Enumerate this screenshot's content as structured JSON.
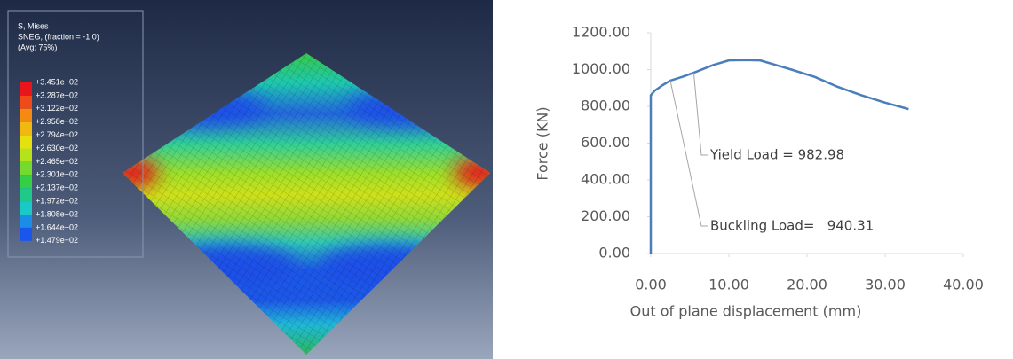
{
  "contour_legend": {
    "lines": [
      "S, Mises",
      "SNEG, (fraction = -1.0)",
      "(Avg: 75%)"
    ],
    "levels": [
      {
        "value": 345.1,
        "label": "+3.451e+02"
      },
      {
        "value": 328.7,
        "label": "+3.287e+02"
      },
      {
        "value": 312.2,
        "label": "+3.122e+02"
      },
      {
        "value": 295.8,
        "label": "+2.958e+02"
      },
      {
        "value": 279.4,
        "label": "+2.794e+02"
      },
      {
        "value": 263.0,
        "label": "+2.630e+02"
      },
      {
        "value": 246.5,
        "label": "+2.465e+02"
      },
      {
        "value": 230.1,
        "label": "+2.301e+02"
      },
      {
        "value": 213.7,
        "label": "+2.137e+02"
      },
      {
        "value": 197.2,
        "label": "+1.972e+02"
      },
      {
        "value": 180.8,
        "label": "+1.808e+02"
      },
      {
        "value": 164.4,
        "label": "+1.644e+02"
      },
      {
        "value": 147.9,
        "label": "+1.479e+02"
      }
    ],
    "colors": [
      "#e8151b",
      "#ef4a18",
      "#f58a12",
      "#f1b811",
      "#e4e10e",
      "#b6e21a",
      "#74da2d",
      "#34cf45",
      "#1ec98a",
      "#1ac8c8",
      "#1a8ee6",
      "#1a55ee"
    ]
  },
  "chart_data": {
    "type": "line",
    "x_label": "Out of plane displacement (mm)",
    "y_label": "Force (KN)",
    "x": [
      0,
      0,
      0.5,
      1.5,
      2.5,
      4,
      5.5,
      8,
      10,
      12,
      14,
      16,
      18,
      21,
      24,
      27,
      30,
      33
    ],
    "series": [
      {
        "color": "#4a7ebb",
        "values": [
          0,
          860,
          885,
          915,
          940,
          960,
          983,
          1025,
          1050,
          1052,
          1050,
          1025,
          1000,
          960,
          905,
          860,
          820,
          785
        ]
      }
    ],
    "xlim": [
      0,
      40
    ],
    "ylim": [
      0,
      1200
    ],
    "xticks": [
      {
        "value": 0,
        "label": "0.00"
      },
      {
        "value": 10,
        "label": "10.00"
      },
      {
        "value": 20,
        "label": "20.00"
      },
      {
        "value": 30,
        "label": "30.00"
      },
      {
        "value": 40,
        "label": "40.00"
      }
    ],
    "yticks": [
      {
        "value": 0,
        "label": "0.00"
      },
      {
        "value": 200,
        "label": "200.00"
      },
      {
        "value": 400,
        "label": "400.00"
      },
      {
        "value": 600,
        "label": "600.00"
      },
      {
        "value": 800,
        "label": "800.00"
      },
      {
        "value": 1000,
        "label": "1000.00"
      },
      {
        "value": 1200,
        "label": "1200.00"
      }
    ],
    "annotations": [
      {
        "text": "Yield Load = 982.98",
        "x": 5.5,
        "y": 982.98
      },
      {
        "text": "Buckling Load=   940.31",
        "x": 2.5,
        "y": 940.31
      }
    ]
  }
}
